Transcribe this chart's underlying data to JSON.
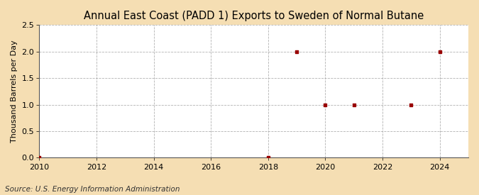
{
  "title": "Annual East Coast (PADD 1) Exports to Sweden of Normal Butane",
  "ylabel": "Thousand Barrels per Day",
  "source": "Source: U.S. Energy Information Administration",
  "x_data": [
    2010,
    2018,
    2019,
    2020,
    2021,
    2023,
    2024
  ],
  "y_data": [
    0.0,
    0.0,
    2.0,
    1.0,
    1.0,
    1.0,
    2.0
  ],
  "xlim": [
    2010,
    2025
  ],
  "ylim": [
    0.0,
    2.5
  ],
  "yticks": [
    0.0,
    0.5,
    1.0,
    1.5,
    2.0,
    2.5
  ],
  "xticks": [
    2010,
    2012,
    2014,
    2016,
    2018,
    2020,
    2022,
    2024
  ],
  "marker_color": "#990000",
  "marker": "s",
  "marker_size": 3.5,
  "bg_color": "#F5DEB3",
  "plot_bg_color": "#FFFFFF",
  "grid_color": "#AAAAAA",
  "title_fontsize": 10.5,
  "label_fontsize": 8,
  "tick_fontsize": 8,
  "source_fontsize": 7.5
}
